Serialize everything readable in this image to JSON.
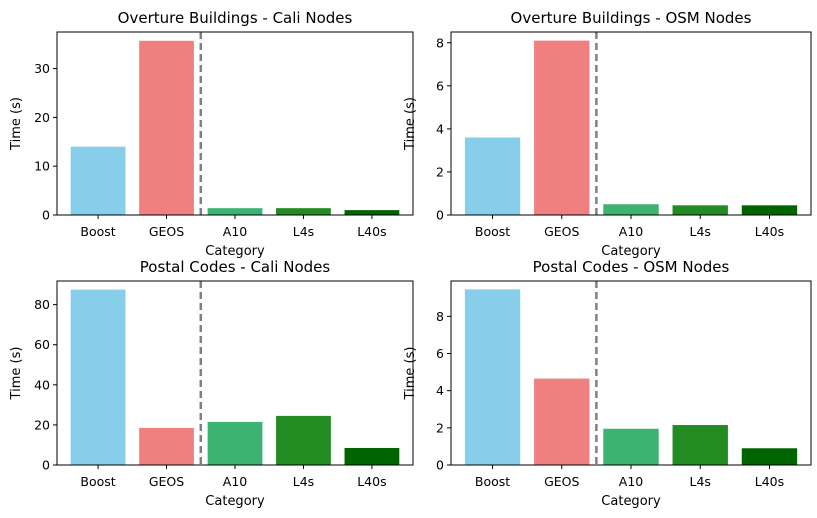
{
  "chart_data": [
    {
      "type": "bar",
      "title": "Overture Buildings - Cali Nodes",
      "xlabel": "Category",
      "ylabel": "Time (s)",
      "categories": [
        "Boost",
        "GEOS",
        "A10",
        "L4s",
        "L40s"
      ],
      "values": [
        14.0,
        35.7,
        1.4,
        1.4,
        1.0
      ],
      "colors": [
        "#87CEEB",
        "#F08080",
        "#3CB371",
        "#228B22",
        "#006400"
      ],
      "ylim": [
        0,
        37.5
      ],
      "yticks": [
        0,
        10,
        20,
        30
      ],
      "separator_color": "#808080",
      "grid": false
    },
    {
      "type": "bar",
      "title": "Overture Buildings - OSM Nodes",
      "xlabel": "Category",
      "ylabel": "Time (s)",
      "categories": [
        "Boost",
        "GEOS",
        "A10",
        "L4s",
        "L40s"
      ],
      "values": [
        3.6,
        8.1,
        0.5,
        0.45,
        0.45
      ],
      "colors": [
        "#87CEEB",
        "#F08080",
        "#3CB371",
        "#228B22",
        "#006400"
      ],
      "ylim": [
        0,
        8.5
      ],
      "yticks": [
        0,
        2,
        4,
        6,
        8
      ],
      "separator_color": "#808080",
      "grid": false
    },
    {
      "type": "bar",
      "title": "Postal Codes - Cali Nodes",
      "xlabel": "Category",
      "ylabel": "Time (s)",
      "categories": [
        "Boost",
        "GEOS",
        "A10",
        "L4s",
        "L40s"
      ],
      "values": [
        87.5,
        18.5,
        21.5,
        24.5,
        8.5
      ],
      "colors": [
        "#87CEEB",
        "#F08080",
        "#3CB371",
        "#228B22",
        "#006400"
      ],
      "ylim": [
        0,
        91.8
      ],
      "yticks": [
        0,
        20,
        40,
        60,
        80
      ],
      "separator_color": "#808080",
      "grid": false
    },
    {
      "type": "bar",
      "title": "Postal Codes - OSM Nodes",
      "xlabel": "Category",
      "ylabel": "Time (s)",
      "categories": [
        "Boost",
        "GEOS",
        "A10",
        "L4s",
        "L40s"
      ],
      "values": [
        9.45,
        4.65,
        1.95,
        2.15,
        0.9
      ],
      "colors": [
        "#87CEEB",
        "#F08080",
        "#3CB371",
        "#228B22",
        "#006400"
      ],
      "ylim": [
        0,
        9.9
      ],
      "yticks": [
        0,
        2,
        4,
        6,
        8
      ],
      "separator_color": "#808080",
      "grid": false
    }
  ]
}
